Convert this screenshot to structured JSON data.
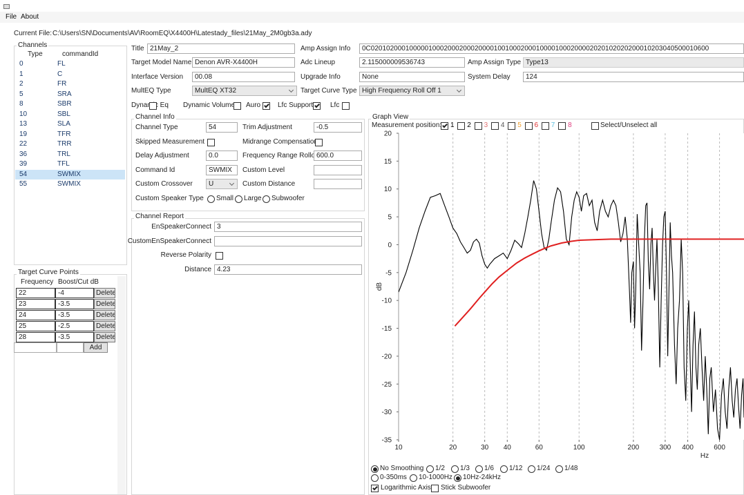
{
  "window": {
    "menu": [
      "File",
      "About"
    ],
    "current_file_label": "Current File:",
    "current_file": "C:\\Users\\SN\\Documents\\AV\\RoomEQ\\X4400H\\Latestady_files\\21May_2M0gb3a.ady"
  },
  "channels": {
    "title": "Channels",
    "columns": [
      "Type",
      "commandId"
    ],
    "selected": 11,
    "rows": [
      [
        "0",
        "FL"
      ],
      [
        "1",
        "C"
      ],
      [
        "2",
        "FR"
      ],
      [
        "5",
        "SRA"
      ],
      [
        "8",
        "SBR"
      ],
      [
        "10",
        "SBL"
      ],
      [
        "13",
        "SLA"
      ],
      [
        "19",
        "TFR"
      ],
      [
        "22",
        "TRR"
      ],
      [
        "36",
        "TRL"
      ],
      [
        "39",
        "TFL"
      ],
      [
        "54",
        "SWMIX"
      ],
      [
        "55",
        "SWMIX"
      ]
    ]
  },
  "target_curve_points": {
    "title": "Target Curve Points",
    "columns": [
      "Frequency",
      "Boost/Cut dB"
    ],
    "rows": [
      [
        "22",
        "-4"
      ],
      [
        "23",
        "-3.5"
      ],
      [
        "24",
        "-3.5"
      ],
      [
        "25",
        "-2.5"
      ],
      [
        "28",
        "-3.5"
      ]
    ],
    "delete": "Delete",
    "add": "Add"
  },
  "form": {
    "fields": [
      {
        "label": "Title",
        "value": "21May_2",
        "kind": "text"
      },
      {
        "label": "Amp Assign Info",
        "value": "0C0201020001000001000200020002000010010002000100001000200002020102020200010203040500010600",
        "kind": "text"
      },
      {
        "label": "Target Model Name",
        "value": "Denon AVR-X4400H",
        "kind": "text"
      },
      {
        "label": "Adc Lineup",
        "value": "2.115000009536743",
        "kind": "text"
      },
      {
        "label": "Amp Assign Type",
        "value": "Type13",
        "kind": "readonly"
      },
      {
        "label": "Interface Version",
        "value": "00.08",
        "kind": "text"
      },
      {
        "label": "Upgrade Info",
        "value": "None",
        "kind": "text"
      },
      {
        "label": "System Delay",
        "value": "124",
        "kind": "text"
      },
      {
        "label": "MultEQ Type",
        "value": "MultEQ XT32",
        "kind": "combo"
      },
      {
        "label": "Target Curve Type",
        "value": "High Frequency Roll Off 1",
        "kind": "combo"
      }
    ],
    "checks": [
      {
        "label": "Dynamic Eq",
        "checked": false
      },
      {
        "label": "Dynamic Volume",
        "checked": false
      },
      {
        "label": "Auro",
        "checked": true
      },
      {
        "label": "Lfc Support",
        "checked": true
      },
      {
        "label": "Lfc",
        "checked": false
      }
    ]
  },
  "channel_info": {
    "title": "Channel Info",
    "items": [
      {
        "label": "Channel Type",
        "value": "54",
        "kind": "text"
      },
      {
        "label": "Trim Adjustment",
        "value": "-0.5",
        "kind": "text"
      },
      {
        "label": "Skipped Measurement",
        "checked": false,
        "kind": "check"
      },
      {
        "label": "Midrange Compensation",
        "checked": false,
        "kind": "check"
      },
      {
        "label": "Delay Adjustment",
        "value": "0.0",
        "kind": "text"
      },
      {
        "label": "Frequency Range Rolloff",
        "value": "600.0",
        "kind": "text"
      },
      {
        "label": "Command Id",
        "value": "SWMIX",
        "kind": "text"
      },
      {
        "label": "Custom Level",
        "kind": "text"
      },
      {
        "label": "Custom Crossover",
        "value": "U",
        "kind": "combo"
      },
      {
        "label": "Custom Distance",
        "kind": "text"
      },
      {
        "label": "Custom Speaker Type",
        "kind": "radio",
        "options": [
          "Small",
          "Large",
          "Subwoofer"
        ]
      }
    ]
  },
  "channel_report": {
    "title": "Channel Report",
    "items": [
      {
        "label": "EnSpeakerConnect",
        "value": "3",
        "kind": "text"
      },
      {
        "label": "CustomEnSpeakerConnect",
        "kind": "text"
      },
      {
        "label": "Reverse Polarity",
        "checked": false,
        "kind": "check"
      },
      {
        "label": "Distance",
        "value": "4.23",
        "kind": "text"
      }
    ]
  },
  "graph": {
    "title": "Graph View",
    "position_label": "Measurement position:",
    "positions": [
      {
        "label": "1",
        "checked": true,
        "color": "#000000"
      },
      {
        "label": "2",
        "checked": false,
        "color": "#000000"
      },
      {
        "label": "3",
        "checked": false,
        "color": "#e07070"
      },
      {
        "label": "4",
        "checked": false,
        "color": "#555555"
      },
      {
        "label": "5",
        "checked": false,
        "color": "#f0a030"
      },
      {
        "label": "6",
        "checked": false,
        "color": "#e03030"
      },
      {
        "label": "7",
        "checked": false,
        "color": "#60c0e0"
      },
      {
        "label": "8",
        "checked": false,
        "color": "#e04080"
      }
    ],
    "select_all": "Select/Unselect all",
    "smoothing": {
      "options": [
        "No Smoothing",
        "1/2",
        "1/3",
        "1/6",
        "1/12",
        "1/24",
        "1/48"
      ],
      "selected": 0
    },
    "range": {
      "options": [
        "0-350ms",
        "10-1000Hz",
        "10Hz-24kHz"
      ],
      "selected": 2
    },
    "options": [
      {
        "label": "Logarithmic Axis",
        "checked": true
      },
      {
        "label": "Stick Subwoofer",
        "checked": false
      }
    ]
  },
  "chart_data": {
    "type": "line",
    "xlabel": "Hz",
    "ylabel": "dB",
    "xscale": "log",
    "grid": "x",
    "xlim": [
      10,
      820
    ],
    "ylim": [
      -35,
      20
    ],
    "xticks": [
      10,
      20,
      30,
      40,
      60,
      100,
      200,
      300,
      400,
      600
    ],
    "yticks": [
      20,
      15,
      10,
      5,
      0,
      -5,
      -10,
      -15,
      -20,
      -25,
      -30,
      -35
    ],
    "series": [
      {
        "color": "#000000",
        "x": [
          10,
          11,
          12,
          13,
          14,
          15,
          16,
          17,
          18,
          19,
          20,
          21,
          22,
          23,
          24,
          25,
          26,
          27,
          28,
          29,
          30,
          31,
          32,
          34,
          36,
          38,
          40,
          42,
          44,
          46,
          48,
          50,
          52,
          54,
          56,
          58,
          60,
          62,
          64,
          66,
          68,
          70,
          73,
          76,
          79,
          82,
          85,
          88,
          91,
          94,
          97,
          100,
          103,
          106,
          110,
          114,
          118,
          122,
          126,
          130,
          135,
          140,
          145,
          150,
          155,
          160,
          165,
          170,
          175,
          180,
          185,
          190,
          193,
          196,
          200,
          203,
          206,
          210,
          214,
          218,
          222,
          226,
          230,
          234,
          238,
          242,
          246,
          250,
          254,
          258,
          262,
          266,
          270,
          275,
          280,
          285,
          290,
          295,
          300,
          305,
          310,
          315,
          320,
          325,
          330,
          338,
          345,
          352,
          360,
          368,
          375,
          382,
          390,
          398,
          405,
          412,
          420,
          428,
          436,
          444,
          452,
          460,
          470,
          480,
          490,
          500,
          510,
          520,
          530,
          540,
          555,
          570,
          585,
          600,
          615,
          630,
          645,
          660,
          675,
          690,
          705,
          720,
          735,
          750,
          765,
          780,
          795,
          810,
          820
        ],
        "values": [
          -8.5,
          -5,
          -1,
          3,
          6,
          8.5,
          8.8,
          9.2,
          7,
          5,
          3,
          2,
          0.5,
          -0.5,
          -1.5,
          -1,
          0.5,
          1,
          0.3,
          -2,
          -3.5,
          -4.2,
          -3.5,
          -2.5,
          -2,
          -1.5,
          -2.5,
          -1,
          0.8,
          0.2,
          -0.5,
          2,
          5,
          8,
          11.5,
          10,
          6,
          2,
          -0.5,
          -1,
          1,
          4,
          8,
          10.2,
          9.5,
          6,
          1,
          0,
          5,
          8,
          9.5,
          8.5,
          6,
          8.8,
          9.2,
          7,
          8,
          4,
          2.5,
          6,
          8,
          6,
          5,
          7,
          8,
          7,
          4,
          0.5,
          2,
          5,
          1,
          -8,
          -14,
          -5,
          -3,
          -15,
          -8,
          5.5,
          0,
          -5,
          -19,
          -10,
          1,
          7,
          7.5,
          -3,
          -8,
          0,
          3,
          -5,
          -10,
          -4,
          1,
          -8,
          -22,
          -10,
          0,
          5,
          6,
          -5,
          -20,
          -8,
          4,
          -2,
          -5,
          -18,
          -25,
          -15,
          -10,
          1,
          -5,
          -22,
          -28,
          -15,
          -10,
          -20,
          -30,
          -18,
          -12,
          -22,
          -26,
          -18,
          -15,
          -22,
          -28,
          -20,
          -26,
          -34,
          -24,
          -22,
          -30,
          -26,
          -33,
          -35,
          -27,
          -24,
          -30,
          -33,
          -26,
          -22,
          -28,
          -31,
          -26,
          -24,
          -29,
          -33,
          -27,
          -24,
          -31
        ]
      },
      {
        "color": "#e02020",
        "x": [
          20.5,
          22,
          25,
          28,
          30,
          33,
          36,
          40,
          45,
          50,
          55,
          60,
          65,
          70,
          80,
          90,
          100,
          120,
          150,
          200,
          820
        ],
        "values": [
          -14.6,
          -13.5,
          -11.5,
          -9.6,
          -8.5,
          -7,
          -5.8,
          -4.6,
          -3.3,
          -2.4,
          -1.7,
          -1.1,
          -0.6,
          -0.2,
          0.3,
          0.6,
          0.8,
          0.9,
          1,
          1,
          1
        ]
      }
    ]
  }
}
